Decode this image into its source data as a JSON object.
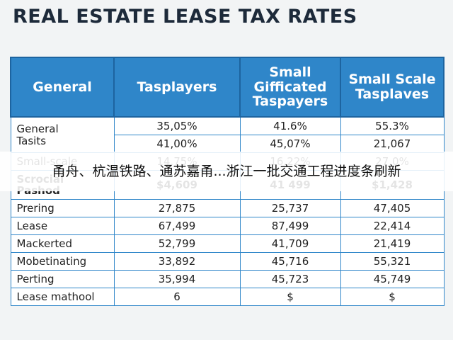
{
  "title": "REAL ESTATE LEASE TAX RATES",
  "table": {
    "header": [
      "General",
      "Tasplayers",
      "Small Gifficated Taspayers",
      "Small Scale Tasplaves"
    ],
    "rows": [
      {
        "label": [
          "General",
          "Tasits"
        ],
        "values": [
          [
            "35,05%",
            "41.6%",
            "55.3%"
          ],
          [
            "41,00%",
            "45,07%",
            "21,067"
          ]
        ]
      },
      {
        "label": [
          "Small-scale"
        ],
        "values": [
          [
            "14.75%",
            "16.22%",
            "27.0%"
          ]
        ]
      },
      {
        "label": [
          "Scrocial",
          "Pashod"
        ],
        "values": [
          [
            "$4,609",
            "41 499",
            "$1,428"
          ]
        ],
        "bold": true
      },
      {
        "label": [
          "Prering"
        ],
        "values": [
          [
            "27,875",
            "25,737",
            "47,405"
          ]
        ]
      },
      {
        "label": [
          "Lease"
        ],
        "values": [
          [
            "67,499",
            "87,499",
            "22,414"
          ]
        ]
      },
      {
        "label": [
          "Mackerted"
        ],
        "values": [
          [
            "52,799",
            "41,709",
            "21,419"
          ]
        ]
      },
      {
        "label": [
          "Mobetinating"
        ],
        "values": [
          [
            "33,892",
            "45,716",
            "55,321"
          ]
        ]
      },
      {
        "label": [
          "Perting"
        ],
        "values": [
          [
            "35,994",
            "45,723",
            "45,749"
          ]
        ]
      },
      {
        "label": [
          "Lease mathool"
        ],
        "values": [
          [
            "6",
            "$",
            "$"
          ]
        ]
      }
    ]
  },
  "banner": "甬舟、杭温铁路、通苏嘉甬...浙江一批交通工程进度条刷新"
}
